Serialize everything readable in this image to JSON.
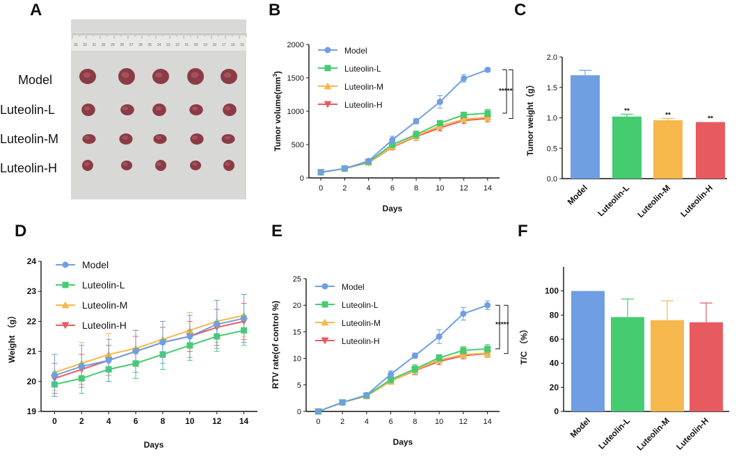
{
  "panels": {
    "A": "A",
    "B": "B",
    "C": "C",
    "D": "D",
    "E": "E",
    "F": "F"
  },
  "photo": {
    "row_labels": [
      "Model",
      "Luteolin-L",
      "Luteolin-M",
      "Luteolin-H"
    ],
    "ruler_numbers": [
      "33",
      "32",
      "31",
      "30",
      "29",
      "28",
      "27",
      "26",
      "25",
      "24",
      "23",
      "22",
      "21",
      "20",
      "19",
      "18",
      "17",
      "16",
      "15"
    ],
    "colors": {
      "background": "#d8d8d6",
      "ruler": "#e9e9e6",
      "tumor": "#8b3b45"
    }
  },
  "colors": {
    "model": "#6f9ee3",
    "low": "#45cc70",
    "mid": "#f6b84c",
    "high": "#e75a60"
  },
  "chart_data": [
    {
      "id": "B",
      "type": "line",
      "xlabel": "Days",
      "ylabel": "Tumor volume(mm3)",
      "ylabel_parts": {
        "main": "Tumor volume(mm",
        "sup": "3",
        "end": ")"
      },
      "x": [
        0,
        2,
        4,
        6,
        8,
        10,
        12,
        14
      ],
      "xlim": [
        -1,
        15
      ],
      "ylim": [
        0,
        2000
      ],
      "yticks": [
        0,
        500,
        1000,
        1500,
        2000
      ],
      "series": [
        {
          "name": "Model",
          "key": "model",
          "marker": "circle",
          "values": [
            85,
            140,
            255,
            570,
            850,
            1140,
            1490,
            1620
          ],
          "errors": [
            10,
            12,
            20,
            55,
            40,
            95,
            55,
            30
          ]
        },
        {
          "name": "Luteolin-L",
          "key": "low",
          "marker": "square",
          "values": [
            85,
            140,
            240,
            500,
            650,
            820,
            945,
            970
          ],
          "errors": [
            10,
            12,
            20,
            45,
            55,
            35,
            40,
            55
          ]
        },
        {
          "name": "Luteolin-M",
          "key": "mid",
          "marker": "triangle-up",
          "values": [
            85,
            140,
            235,
            470,
            630,
            780,
            880,
            910
          ],
          "errors": [
            10,
            12,
            20,
            45,
            60,
            45,
            40,
            50
          ]
        },
        {
          "name": "Luteolin-H",
          "key": "high",
          "marker": "triangle-down",
          "values": [
            85,
            140,
            230,
            460,
            620,
            750,
            860,
            890
          ],
          "errors": [
            10,
            12,
            20,
            40,
            55,
            45,
            45,
            50
          ]
        }
      ],
      "annotation": "*****"
    },
    {
      "id": "C",
      "type": "bar",
      "ylabel": "Tumor weight（g）",
      "categories": [
        "Model",
        "Luteolin-L",
        "Luteolin-M",
        "Luteolin-H"
      ],
      "keys": [
        "model",
        "low",
        "mid",
        "high"
      ],
      "values": [
        1.7,
        1.02,
        0.96,
        0.93
      ],
      "errors": [
        0.08,
        0.04,
        0.03,
        0.0
      ],
      "significance": [
        "",
        "**",
        "**",
        "**"
      ],
      "ylim": [
        0,
        2.0
      ],
      "yticks": [
        "0.0",
        "0.5",
        "1.0",
        "1.5",
        "2.0"
      ]
    },
    {
      "id": "D",
      "type": "line",
      "xlabel": "Days",
      "ylabel": "Weight （g）",
      "x": [
        0,
        2,
        4,
        6,
        8,
        10,
        12,
        14
      ],
      "xlim": [
        -1,
        15
      ],
      "ylim": [
        19,
        24
      ],
      "yticks": [
        19,
        20,
        21,
        22,
        23,
        24
      ],
      "series": [
        {
          "name": "Model",
          "key": "model",
          "marker": "circle",
          "values": [
            20.2,
            20.5,
            20.7,
            21.0,
            21.3,
            21.5,
            21.9,
            22.1
          ],
          "errors": [
            0.7,
            0.7,
            0.7,
            0.7,
            0.7,
            0.7,
            0.8,
            0.8
          ]
        },
        {
          "name": "Luteolin-L",
          "key": "low",
          "marker": "square",
          "values": [
            19.9,
            20.1,
            20.4,
            20.6,
            20.9,
            21.2,
            21.5,
            21.7
          ],
          "errors": [
            0.4,
            0.5,
            0.4,
            0.5,
            0.5,
            0.5,
            0.5,
            0.5
          ]
        },
        {
          "name": "Luteolin-M",
          "key": "mid",
          "marker": "triangle-up",
          "values": [
            20.3,
            20.6,
            20.9,
            21.1,
            21.4,
            21.7,
            22.0,
            22.2
          ],
          "errors": [
            0.6,
            0.7,
            0.7,
            0.6,
            0.6,
            0.6,
            0.7,
            0.7
          ]
        },
        {
          "name": "Luteolin-H",
          "key": "high",
          "marker": "triangle-down",
          "values": [
            20.1,
            20.4,
            20.7,
            21.0,
            21.3,
            21.5,
            21.8,
            22.0
          ],
          "errors": [
            0.5,
            0.5,
            0.5,
            0.5,
            0.5,
            0.5,
            0.6,
            0.6
          ]
        }
      ]
    },
    {
      "id": "E",
      "type": "line",
      "xlabel": "Days",
      "ylabel": "RTV rate(of control %)",
      "x": [
        0,
        2,
        4,
        6,
        8,
        10,
        12,
        14
      ],
      "xlim": [
        -1,
        15
      ],
      "ylim": [
        0,
        25
      ],
      "yticks": [
        0,
        5,
        10,
        15,
        20,
        25
      ],
      "series": [
        {
          "name": "Model",
          "key": "model",
          "marker": "circle",
          "values": [
            0,
            1.7,
            3.1,
            7.0,
            10.5,
            14.1,
            18.4,
            20.0
          ],
          "errors": [
            0.1,
            0.2,
            0.3,
            0.7,
            0.5,
            1.3,
            1.2,
            0.8
          ]
        },
        {
          "name": "Luteolin-L",
          "key": "low",
          "marker": "square",
          "values": [
            0,
            1.7,
            3.0,
            6.0,
            8.0,
            10.1,
            11.5,
            11.8
          ],
          "errors": [
            0.1,
            0.2,
            0.3,
            0.6,
            0.8,
            0.6,
            0.7,
            0.8
          ]
        },
        {
          "name": "Luteolin-M",
          "key": "mid",
          "marker": "triangle-up",
          "values": [
            0,
            1.7,
            2.9,
            5.7,
            7.8,
            9.7,
            10.7,
            11.0
          ],
          "errors": [
            0.1,
            0.2,
            0.3,
            0.6,
            0.8,
            0.6,
            0.6,
            0.7
          ]
        },
        {
          "name": "Luteolin-H",
          "key": "high",
          "marker": "triangle-down",
          "values": [
            0,
            1.7,
            2.9,
            5.7,
            7.7,
            9.4,
            10.5,
            10.9
          ],
          "errors": [
            0.1,
            0.2,
            0.3,
            0.6,
            0.8,
            0.6,
            0.6,
            0.7
          ]
        }
      ],
      "annotation": "*****"
    },
    {
      "id": "F",
      "type": "bar",
      "ylabel": "T/C （%）",
      "categories": [
        "Model",
        "Luteolin-L",
        "Luteolin-M",
        "Luteolin-H"
      ],
      "keys": [
        "model",
        "low",
        "mid",
        "high"
      ],
      "values": [
        100,
        78.3,
        75.8,
        74.0
      ],
      "errors": [
        0,
        15,
        16,
        16
      ],
      "ylim": [
        0,
        120
      ],
      "yticks": [
        0,
        20,
        40,
        60,
        80,
        100
      ]
    }
  ]
}
